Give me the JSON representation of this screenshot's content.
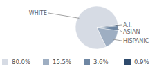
{
  "chart_data": {
    "type": "pie",
    "categories": [
      "WHITE",
      "HISPANIC",
      "ASIAN",
      "A.I."
    ],
    "values": [
      80.0,
      15.5,
      3.6,
      0.9
    ],
    "value_labels": [
      "80.0%",
      "15.5%",
      "3.6%",
      "0.9%"
    ],
    "colors": [
      "#d6dbe4",
      "#9eaec2",
      "#6f87a3",
      "#2e4a6c"
    ]
  }
}
